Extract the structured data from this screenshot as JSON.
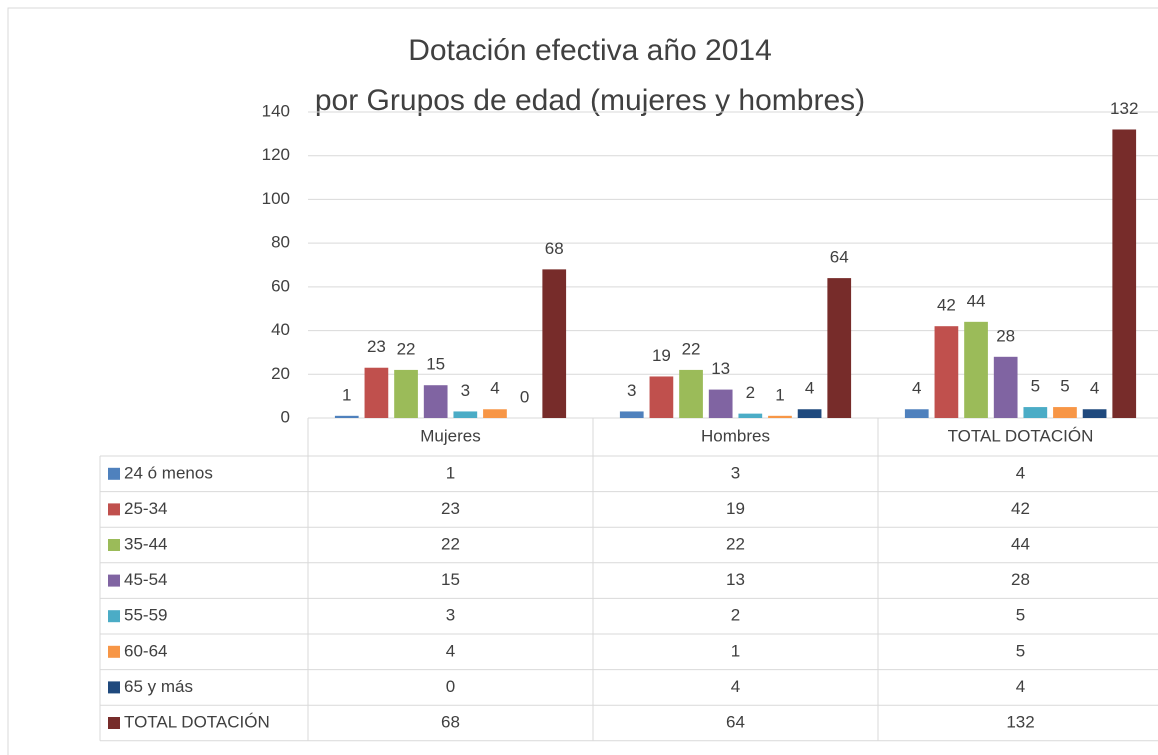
{
  "chart_data": {
    "type": "bar",
    "title": "Dotación efectiva año 2014",
    "subtitle": "por Grupos de edad (mujeres y hombres)",
    "categories": [
      "Mujeres",
      "Hombres",
      "TOTAL DOTACIÓN"
    ],
    "series": [
      {
        "name": "24 ó menos",
        "color": "#4f81bd",
        "values": [
          1,
          3,
          4
        ]
      },
      {
        "name": "25-34",
        "color": "#c0504d",
        "values": [
          23,
          19,
          42
        ]
      },
      {
        "name": "35-44",
        "color": "#9bbb59",
        "values": [
          22,
          22,
          44
        ]
      },
      {
        "name": "45-54",
        "color": "#8064a2",
        "values": [
          15,
          13,
          28
        ]
      },
      {
        "name": "55-59",
        "color": "#4bacc6",
        "values": [
          3,
          2,
          5
        ]
      },
      {
        "name": "60-64",
        "color": "#f79646",
        "values": [
          4,
          1,
          5
        ]
      },
      {
        "name": "65 y más",
        "color": "#1f497d",
        "values": [
          0,
          4,
          4
        ]
      },
      {
        "name": "TOTAL DOTACIÓN",
        "color": "#772c2a",
        "values": [
          68,
          64,
          132
        ]
      }
    ],
    "ylim": [
      0,
      140
    ],
    "yticks": [
      0,
      20,
      40,
      60,
      80,
      100,
      120,
      140
    ],
    "grid": true,
    "data_table": true
  }
}
